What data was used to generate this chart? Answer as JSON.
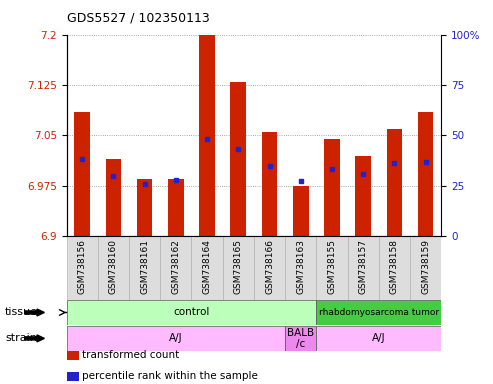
{
  "title": "GDS5527 / 102350113",
  "samples": [
    "GSM738156",
    "GSM738160",
    "GSM738161",
    "GSM738162",
    "GSM738164",
    "GSM738165",
    "GSM738166",
    "GSM738163",
    "GSM738155",
    "GSM738157",
    "GSM738158",
    "GSM738159"
  ],
  "bar_values": [
    7.085,
    7.015,
    6.985,
    6.985,
    7.2,
    7.13,
    7.055,
    6.975,
    7.045,
    7.02,
    7.06,
    7.085
  ],
  "percentile_values": [
    7.015,
    6.99,
    6.978,
    6.983,
    7.045,
    7.03,
    7.005,
    6.982,
    7.0,
    6.993,
    7.009,
    7.01
  ],
  "ymin": 6.9,
  "ymax": 7.2,
  "yticks": [
    6.9,
    6.975,
    7.05,
    7.125,
    7.2
  ],
  "ytick_labels": [
    "6.9",
    "6.975",
    "7.05",
    "7.125",
    "7.2"
  ],
  "right_yticks_pct": [
    0,
    25,
    50,
    75,
    100
  ],
  "right_ytick_labels": [
    "0",
    "25",
    "50",
    "75",
    "100%"
  ],
  "bar_color": "#cc2200",
  "percentile_color": "#2222cc",
  "tissue_groups": [
    {
      "label": "control",
      "start": 0,
      "end": 8,
      "color": "#bbffbb"
    },
    {
      "label": "rhabdomyosarcoma tumor",
      "start": 8,
      "end": 12,
      "color": "#44cc44"
    }
  ],
  "strain_groups": [
    {
      "label": "A/J",
      "start": 0,
      "end": 7,
      "color": "#ffbbff"
    },
    {
      "label": "BALB\n/c",
      "start": 7,
      "end": 8,
      "color": "#ee88ee"
    },
    {
      "label": "A/J",
      "start": 8,
      "end": 12,
      "color": "#ffbbff"
    }
  ],
  "tissue_label": "tissue",
  "strain_label": "strain",
  "legend_items": [
    {
      "label": "transformed count",
      "color": "#cc2200"
    },
    {
      "label": "percentile rank within the sample",
      "color": "#2222cc"
    }
  ],
  "bg_color": "#ffffff",
  "grid_color": "#888888",
  "xlabel_fontsize": 6.5,
  "ylabel_fontsize": 8,
  "title_fontsize": 9
}
